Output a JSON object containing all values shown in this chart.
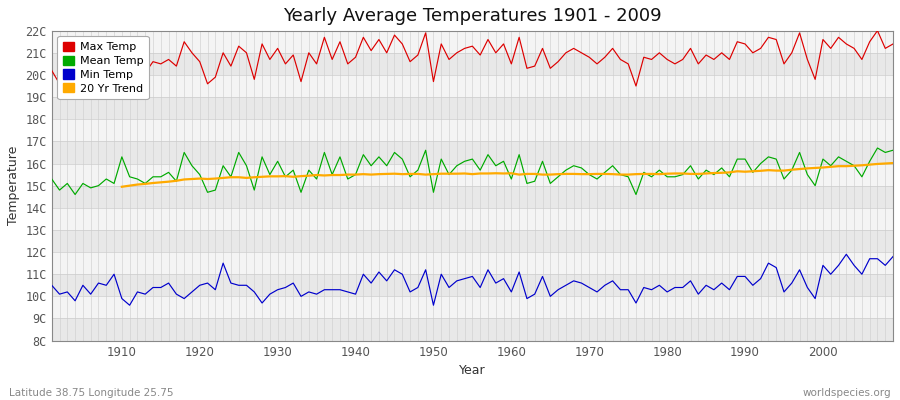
{
  "title": "Yearly Average Temperatures 1901 - 2009",
  "xlabel": "Year",
  "ylabel": "Temperature",
  "bottom_left_text": "Latitude 38.75 Longitude 25.75",
  "bottom_right_text": "worldspecies.org",
  "years": [
    1901,
    1902,
    1903,
    1904,
    1905,
    1906,
    1907,
    1908,
    1909,
    1910,
    1911,
    1912,
    1913,
    1914,
    1915,
    1916,
    1917,
    1918,
    1919,
    1920,
    1921,
    1922,
    1923,
    1924,
    1925,
    1926,
    1927,
    1928,
    1929,
    1930,
    1931,
    1932,
    1933,
    1934,
    1935,
    1936,
    1937,
    1938,
    1939,
    1940,
    1941,
    1942,
    1943,
    1944,
    1945,
    1946,
    1947,
    1948,
    1949,
    1950,
    1951,
    1952,
    1953,
    1954,
    1955,
    1956,
    1957,
    1958,
    1959,
    1960,
    1961,
    1962,
    1963,
    1964,
    1965,
    1966,
    1967,
    1968,
    1969,
    1970,
    1971,
    1972,
    1973,
    1974,
    1975,
    1976,
    1977,
    1978,
    1979,
    1980,
    1981,
    1982,
    1983,
    1984,
    1985,
    1986,
    1987,
    1988,
    1989,
    1990,
    1991,
    1992,
    1993,
    1994,
    1995,
    1996,
    1997,
    1998,
    1999,
    2000,
    2001,
    2002,
    2003,
    2004,
    2005,
    2006,
    2007,
    2008,
    2009
  ],
  "max_temp": [
    20.2,
    19.6,
    20.1,
    19.4,
    19.8,
    19.9,
    19.5,
    20.1,
    19.3,
    21.2,
    20.6,
    20.4,
    20.1,
    20.6,
    20.5,
    20.7,
    20.4,
    21.5,
    21.0,
    20.6,
    19.6,
    19.9,
    21.0,
    20.4,
    21.3,
    21.0,
    19.8,
    21.4,
    20.7,
    21.2,
    20.5,
    20.9,
    19.7,
    21.0,
    20.5,
    21.7,
    20.7,
    21.5,
    20.5,
    20.8,
    21.7,
    21.1,
    21.6,
    21.0,
    21.8,
    21.4,
    20.6,
    20.9,
    21.9,
    19.7,
    21.4,
    20.7,
    21.0,
    21.2,
    21.3,
    20.9,
    21.6,
    21.0,
    21.4,
    20.5,
    21.7,
    20.3,
    20.4,
    21.2,
    20.3,
    20.6,
    21.0,
    21.2,
    21.0,
    20.8,
    20.5,
    20.8,
    21.2,
    20.7,
    20.5,
    19.5,
    20.8,
    20.7,
    21.0,
    20.7,
    20.5,
    20.7,
    21.2,
    20.5,
    20.9,
    20.7,
    21.0,
    20.7,
    21.5,
    21.4,
    21.0,
    21.2,
    21.7,
    21.6,
    20.5,
    21.0,
    21.9,
    20.7,
    19.8,
    21.6,
    21.2,
    21.7,
    21.4,
    21.2,
    20.7,
    21.5,
    22.0,
    21.2,
    21.4
  ],
  "mean_temp": [
    15.3,
    14.8,
    15.1,
    14.6,
    15.1,
    14.9,
    15.0,
    15.3,
    15.1,
    16.3,
    15.4,
    15.3,
    15.1,
    15.4,
    15.4,
    15.6,
    15.2,
    16.5,
    15.9,
    15.5,
    14.7,
    14.8,
    15.9,
    15.4,
    16.5,
    15.9,
    14.8,
    16.3,
    15.5,
    16.1,
    15.4,
    15.7,
    14.7,
    15.7,
    15.3,
    16.5,
    15.5,
    16.3,
    15.3,
    15.5,
    16.4,
    15.9,
    16.3,
    15.9,
    16.5,
    16.2,
    15.4,
    15.7,
    16.6,
    14.7,
    16.2,
    15.5,
    15.9,
    16.1,
    16.2,
    15.7,
    16.4,
    15.9,
    16.1,
    15.3,
    16.4,
    15.1,
    15.2,
    16.1,
    15.1,
    15.4,
    15.7,
    15.9,
    15.8,
    15.5,
    15.3,
    15.6,
    15.9,
    15.5,
    15.4,
    14.6,
    15.6,
    15.4,
    15.7,
    15.4,
    15.4,
    15.5,
    15.9,
    15.3,
    15.7,
    15.5,
    15.8,
    15.4,
    16.2,
    16.2,
    15.6,
    16.0,
    16.3,
    16.2,
    15.3,
    15.7,
    16.5,
    15.5,
    15.0,
    16.2,
    15.9,
    16.3,
    16.1,
    15.9,
    15.4,
    16.1,
    16.7,
    16.5,
    16.6
  ],
  "min_temp": [
    10.5,
    10.1,
    10.2,
    9.8,
    10.5,
    10.1,
    10.6,
    10.5,
    11.0,
    9.9,
    9.6,
    10.2,
    10.1,
    10.4,
    10.4,
    10.6,
    10.1,
    9.9,
    10.2,
    10.5,
    10.6,
    10.3,
    11.5,
    10.6,
    10.5,
    10.5,
    10.2,
    9.7,
    10.1,
    10.3,
    10.4,
    10.6,
    10.0,
    10.2,
    10.1,
    10.3,
    10.3,
    10.3,
    10.2,
    10.1,
    11.0,
    10.6,
    11.1,
    10.7,
    11.2,
    11.0,
    10.2,
    10.4,
    11.2,
    9.6,
    11.0,
    10.4,
    10.7,
    10.8,
    10.9,
    10.4,
    11.2,
    10.6,
    10.8,
    10.2,
    11.1,
    9.9,
    10.1,
    10.9,
    10.0,
    10.3,
    10.5,
    10.7,
    10.6,
    10.4,
    10.2,
    10.5,
    10.7,
    10.3,
    10.3,
    9.7,
    10.4,
    10.3,
    10.5,
    10.2,
    10.4,
    10.4,
    10.7,
    10.1,
    10.5,
    10.3,
    10.6,
    10.3,
    10.9,
    10.9,
    10.5,
    10.8,
    11.5,
    11.3,
    10.2,
    10.6,
    11.2,
    10.4,
    9.9,
    11.4,
    11.0,
    11.4,
    11.9,
    11.4,
    11.0,
    11.7,
    11.7,
    11.4,
    11.8
  ],
  "trend_start_year": 1910,
  "trend_vals": [
    14.95,
    15.0,
    15.05,
    15.08,
    15.12,
    15.15,
    15.18,
    15.22,
    15.28,
    15.3,
    15.32,
    15.3,
    15.32,
    15.35,
    15.38,
    15.38,
    15.35,
    15.38,
    15.4,
    15.42,
    15.42,
    15.43,
    15.4,
    15.43,
    15.45,
    15.48,
    15.46,
    15.48,
    15.48,
    15.5,
    15.5,
    15.52,
    15.5,
    15.52,
    15.53,
    15.54,
    15.52,
    15.53,
    15.53,
    15.5,
    15.52,
    15.54,
    15.54,
    15.54,
    15.55,
    15.52,
    15.55,
    15.55,
    15.56,
    15.55,
    15.56,
    15.5,
    15.53,
    15.53,
    15.5,
    15.5,
    15.52,
    15.53,
    15.53,
    15.52,
    15.52,
    15.53,
    15.53,
    15.52,
    15.5,
    15.5,
    15.52,
    15.53,
    15.53,
    15.52,
    15.54,
    15.55,
    15.55,
    15.53,
    15.53,
    15.55,
    15.57,
    15.58,
    15.6,
    15.65,
    15.63,
    15.65,
    15.67,
    15.7,
    15.68,
    15.68,
    15.72,
    15.75,
    15.78,
    15.8,
    15.82,
    15.85,
    15.88,
    15.88,
    15.9,
    15.92,
    15.95,
    15.98,
    16.0,
    16.02
  ],
  "ylim": [
    8,
    22
  ],
  "ytick_vals": [
    8,
    9,
    10,
    11,
    12,
    13,
    14,
    15,
    16,
    17,
    18,
    19,
    20,
    21,
    22
  ],
  "ytick_labels": [
    "8C",
    "9C",
    "10C",
    "11C",
    "12C",
    "13C",
    "14C",
    "15C",
    "16C",
    "17C",
    "18C",
    "19C",
    "20C",
    "21C",
    "22C"
  ],
  "xlim": [
    1901,
    2009
  ],
  "xtick_vals": [
    1910,
    1920,
    1930,
    1940,
    1950,
    1960,
    1970,
    1980,
    1990,
    2000
  ],
  "xtick_labels": [
    "1910",
    "1920",
    "1930",
    "1940",
    "1950",
    "1960",
    "1970",
    "1980",
    "1990",
    "2000"
  ],
  "legend_labels": [
    "Max Temp",
    "Mean Temp",
    "Min Temp",
    "20 Yr Trend"
  ],
  "legend_colors": [
    "#dd0000",
    "#00aa00",
    "#0000cc",
    "#ffaa00"
  ],
  "line_colors": {
    "max": "#dd0000",
    "mean": "#00aa00",
    "min": "#0000cc",
    "trend": "#ffaa00"
  },
  "plot_bg_color": "#ffffff",
  "fig_bg_color": "#ffffff",
  "band_color_odd": "#e8e8e8",
  "band_color_even": "#f4f4f4",
  "grid_color": "#cccccc",
  "title_fontsize": 13,
  "axis_label_fontsize": 9,
  "tick_fontsize": 8.5,
  "tick_color": "#555555",
  "spine_color": "#888888"
}
